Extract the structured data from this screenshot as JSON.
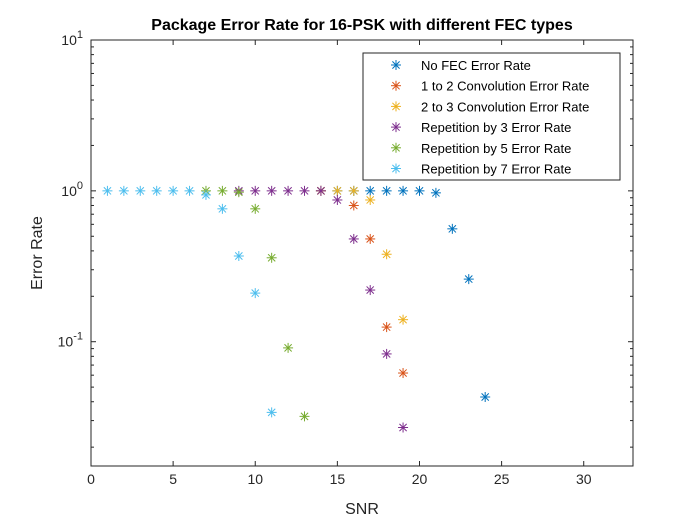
{
  "chart_data": {
    "type": "scatter",
    "title": "Package Error Rate for 16-PSK with different FEC types",
    "xlabel": "SNR",
    "ylabel": "Error Rate",
    "xlim": [
      0,
      33
    ],
    "ylim": [
      0.015,
      10
    ],
    "yscale": "log",
    "xticks": [
      0,
      5,
      10,
      15,
      20,
      25,
      30
    ],
    "xtick_labels": [
      "0",
      "5",
      "10",
      "15",
      "20",
      "25",
      "30"
    ],
    "yticks": [
      0.1,
      1,
      10
    ],
    "ytick_labels": [
      {
        "base": "10",
        "exp": "-1"
      },
      {
        "base": "10",
        "exp": "0"
      },
      {
        "base": "10",
        "exp": "1"
      }
    ],
    "grid": false,
    "legend_position": "top-right",
    "marker": "*",
    "series": [
      {
        "name": "No FEC Error Rate",
        "color": "#0072BD",
        "x": [
          14,
          15,
          16,
          17,
          18,
          19,
          20,
          21,
          22,
          23,
          24
        ],
        "y": [
          1,
          1,
          1,
          1,
          1,
          1,
          1,
          0.97,
          0.56,
          0.26,
          0.043
        ]
      },
      {
        "name": "1 to 2 Convolution Error Rate",
        "color": "#D95319",
        "x": [
          14,
          16,
          17,
          18,
          19
        ],
        "y": [
          1,
          0.8,
          0.48,
          0.125,
          0.062
        ]
      },
      {
        "name": "2 to 3 Convolution Error Rate",
        "color": "#EDB120",
        "x": [
          14,
          15,
          16,
          17,
          18,
          19
        ],
        "y": [
          1,
          1,
          1,
          0.87,
          0.38,
          0.14
        ]
      },
      {
        "name": "Repetition by 3 Error Rate",
        "color": "#7E2F8E",
        "x": [
          9,
          10,
          11,
          12,
          13,
          14,
          15,
          16,
          17,
          18,
          19
        ],
        "y": [
          1,
          1,
          1,
          1,
          1,
          1,
          0.87,
          0.48,
          0.22,
          0.083,
          0.027
        ]
      },
      {
        "name": "Repetition by 5 Error Rate",
        "color": "#77AC30",
        "x": [
          7,
          8,
          9,
          10,
          11,
          12,
          13
        ],
        "y": [
          1,
          1,
          0.98,
          0.76,
          0.36,
          0.091,
          0.032
        ]
      },
      {
        "name": "Repetition by 7 Error Rate",
        "color": "#4DBEEE",
        "x": [
          1,
          2,
          3,
          4,
          5,
          6,
          7,
          8,
          9,
          10,
          11
        ],
        "y": [
          1,
          1,
          1,
          1,
          1,
          1,
          0.94,
          0.76,
          0.37,
          0.21,
          0.034
        ]
      }
    ]
  }
}
